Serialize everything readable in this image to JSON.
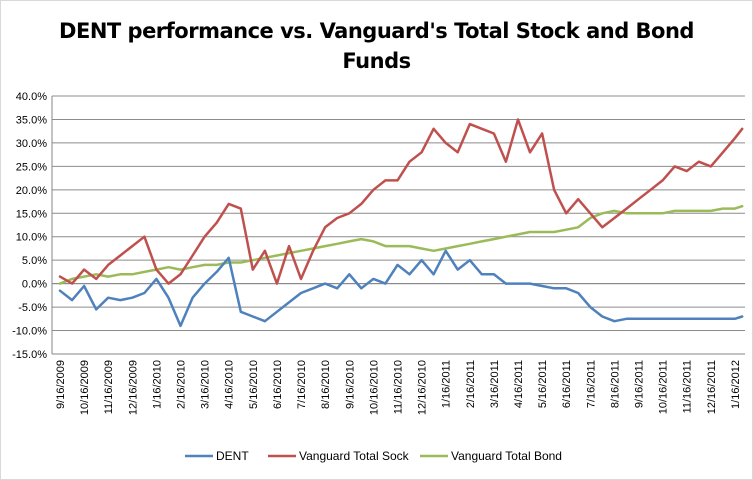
{
  "chart_data": {
    "type": "line",
    "title_line1": "DENT performance vs. Vanguard's Total Stock and Bond",
    "title_line2": "Funds",
    "xlabel": "",
    "ylabel": "",
    "ylim": [
      -15,
      40
    ],
    "yticks": [
      "40.0%",
      "35.0%",
      "30.0%",
      "25.0%",
      "20.0%",
      "15.0%",
      "10.0%",
      "5.0%",
      "0.0%",
      "-5.0%",
      "-10.0%",
      "-15.0%"
    ],
    "x_tick_labels": [
      "9/16/2009",
      "10/16/2009",
      "11/16/2009",
      "12/16/2009",
      "1/16/2010",
      "2/16/2010",
      "3/16/2010",
      "4/16/2010",
      "5/16/2010",
      "6/16/2010",
      "7/16/2010",
      "8/16/2010",
      "9/16/2010",
      "10/16/2010",
      "11/16/2010",
      "12/16/2010",
      "1/16/2011",
      "2/16/2011",
      "3/16/2011",
      "4/16/2011",
      "5/16/2011",
      "6/16/2011",
      "7/16/2011",
      "8/16/2011",
      "9/16/2011",
      "10/16/2011",
      "11/16/2011",
      "12/16/2011",
      "1/16/2012"
    ],
    "grid": "horizontal",
    "legend_position": "bottom",
    "series": [
      {
        "name": "DENT",
        "color": "#4f81bd",
        "x": [
          0,
          0.5,
          1,
          1.5,
          2,
          2.5,
          3,
          3.5,
          4,
          4.5,
          5,
          5.5,
          6,
          6.5,
          7,
          7.5,
          8,
          8.5,
          9,
          9.5,
          10,
          10.5,
          11,
          11.5,
          12,
          12.5,
          13,
          13.5,
          14,
          14.5,
          15,
          15.5,
          16,
          16.5,
          17,
          17.5,
          18,
          18.5,
          19,
          19.5,
          20,
          20.5,
          21,
          21.5,
          22,
          22.5,
          23,
          23.5,
          24,
          24.5,
          25,
          25.5,
          26,
          26.5,
          27,
          27.5,
          28,
          28.3
        ],
        "values": [
          -1.5,
          -3.5,
          -0.5,
          -5.5,
          -3,
          -3.5,
          -3,
          -2,
          1,
          -3,
          -9,
          -3,
          0,
          2.5,
          5.5,
          -6,
          -7,
          -8,
          -6,
          -4,
          -2,
          -1,
          0,
          -1,
          2,
          -1,
          1,
          0,
          4,
          2,
          5,
          2,
          7,
          3,
          5,
          2,
          2,
          0,
          0,
          0,
          -0.5,
          -1,
          -1,
          -2,
          -5,
          -7,
          -8,
          -7.5,
          -7.5,
          -7.5,
          -7.5,
          -7.5,
          -7.5,
          -7.5,
          -7.5,
          -7.5,
          -7.5,
          -7
        ]
      },
      {
        "name": "Vanguard Total Sock",
        "color": "#c0504d",
        "x": [
          0,
          0.5,
          1,
          1.5,
          2,
          2.5,
          3,
          3.5,
          4,
          4.5,
          5,
          5.5,
          6,
          6.5,
          7,
          7.5,
          8,
          8.5,
          9,
          9.5,
          10,
          10.5,
          11,
          11.5,
          12,
          12.5,
          13,
          13.5,
          14,
          14.5,
          15,
          15.5,
          16,
          16.5,
          17,
          17.5,
          18,
          18.5,
          19,
          19.5,
          20,
          20.5,
          21,
          21.5,
          22,
          22.5,
          23,
          23.5,
          24,
          24.5,
          25,
          25.5,
          26,
          26.5,
          27,
          27.5,
          28,
          28.3
        ],
        "values": [
          1.5,
          0,
          3,
          1,
          4,
          6,
          8,
          10,
          3,
          0,
          2,
          6,
          10,
          13,
          17,
          16,
          3,
          7,
          0,
          8,
          1,
          7,
          12,
          14,
          15,
          17,
          20,
          22,
          22,
          26,
          28,
          33,
          30,
          28,
          34,
          33,
          32,
          26,
          35,
          28,
          32,
          20,
          15,
          18,
          15,
          12,
          14,
          16,
          18,
          20,
          22,
          25,
          24,
          26,
          25,
          28,
          31,
          33
        ]
      },
      {
        "name": "Vanguard Total Bond",
        "color": "#9bbb59",
        "x": [
          0,
          0.5,
          1,
          1.5,
          2,
          2.5,
          3,
          3.5,
          4,
          4.5,
          5,
          5.5,
          6,
          6.5,
          7,
          7.5,
          8,
          8.5,
          9,
          9.5,
          10,
          10.5,
          11,
          11.5,
          12,
          12.5,
          13,
          13.5,
          14,
          14.5,
          15,
          15.5,
          16,
          16.5,
          17,
          17.5,
          18,
          18.5,
          19,
          19.5,
          20,
          20.5,
          21,
          21.5,
          22,
          22.5,
          23,
          23.5,
          24,
          24.5,
          25,
          25.5,
          26,
          26.5,
          27,
          27.5,
          28,
          28.3
        ],
        "values": [
          0,
          1,
          1.5,
          2,
          1.5,
          2,
          2,
          2.5,
          3,
          3.5,
          3,
          3.5,
          4,
          4,
          4.5,
          4.5,
          5,
          5.5,
          6,
          6.5,
          7,
          7.5,
          8,
          8.5,
          9,
          9.5,
          9,
          8,
          8,
          8,
          7.5,
          7,
          7.5,
          8,
          8.5,
          9,
          9.5,
          10,
          10.5,
          11,
          11,
          11,
          11.5,
          12,
          14,
          15,
          15.5,
          15,
          15,
          15,
          15,
          15.5,
          15.5,
          15.5,
          15.5,
          16,
          16,
          16.5
        ]
      }
    ]
  }
}
